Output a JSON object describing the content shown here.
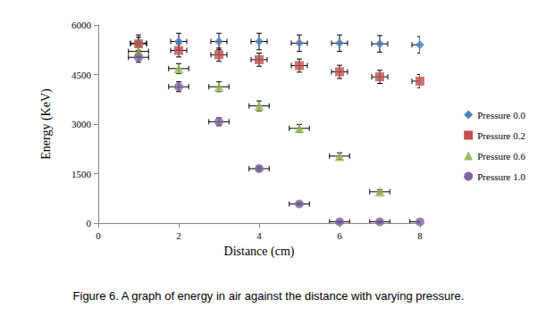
{
  "chart_data": {
    "type": "scatter",
    "title": "Figure 6. A graph of energy in air against the distance with varying pressure.",
    "x_label": "Distance (cm)",
    "y_label": "Energy (KeV)",
    "x": [
      1,
      2,
      3,
      4,
      5,
      6,
      7,
      8
    ],
    "xlim": [
      0,
      8
    ],
    "xticks": [
      0,
      2,
      4,
      6,
      8
    ],
    "ylim": [
      0,
      6000
    ],
    "yticks": [
      0,
      1500,
      3000,
      4500,
      6000
    ],
    "grid": false,
    "legend": "right",
    "series": [
      {
        "name": "Pressure 0.0",
        "color": "#4f81bd",
        "marker": "diamond",
        "values": [
          5450,
          5500,
          5500,
          5500,
          5450,
          5450,
          5430,
          5400
        ],
        "y_errors": [
          250,
          250,
          250,
          250,
          250,
          250,
          250,
          250
        ],
        "x_errors": [
          0.2,
          0.2,
          0.2,
          0.2,
          0.2,
          0.2,
          0.2,
          0.2
        ]
      },
      {
        "name": "Pressure 0.2",
        "color": "#c0504d",
        "marker": "square",
        "values": [
          5430,
          5230,
          5100,
          4950,
          4770,
          4580,
          4430,
          4300
        ],
        "y_errors": [
          200,
          200,
          200,
          200,
          200,
          200,
          200,
          200
        ],
        "x_errors": [
          0.2,
          0.2,
          0.2,
          0.2,
          0.2,
          0.2,
          0.2,
          0.2
        ]
      },
      {
        "name": "Pressure 0.6",
        "color": "#9bbb59",
        "marker": "triangle",
        "values": [
          5200,
          4680,
          4130,
          3550,
          2870,
          2030,
          950,
          null
        ],
        "y_errors": [
          150,
          150,
          150,
          150,
          120,
          100,
          60,
          null
        ],
        "x_errors": [
          0.25,
          0.25,
          0.25,
          0.25,
          0.25,
          0.25,
          0.25,
          null
        ]
      },
      {
        "name": "Pressure 1.0",
        "color": "#8064a2",
        "marker": "circle",
        "values": [
          5020,
          4130,
          3070,
          1650,
          580,
          40,
          40,
          40
        ],
        "y_errors": [
          150,
          150,
          120,
          60,
          40,
          20,
          20,
          20
        ],
        "x_errors": [
          0.25,
          0.25,
          0.25,
          0.25,
          0.25,
          0.25,
          0.25,
          0.25
        ]
      }
    ]
  }
}
